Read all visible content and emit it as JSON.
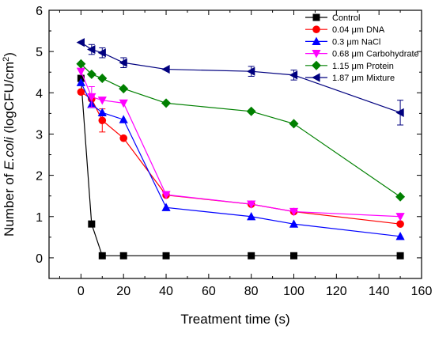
{
  "chart_data": {
    "type": "line",
    "xlabel": "Treatment time (s)",
    "ylabel_parts": [
      "Number of ",
      "E.coli",
      " (logCFU/cm",
      "2",
      ")"
    ],
    "xlim": [
      -15,
      160
    ],
    "ylim": [
      -0.5,
      6
    ],
    "x_ticks": [
      0,
      20,
      40,
      60,
      80,
      100,
      120,
      140,
      160
    ],
    "y_ticks": [
      0,
      1,
      2,
      3,
      4,
      5,
      6
    ],
    "x_tick_labels": [
      "0",
      "20",
      "40",
      "60",
      "80",
      "100",
      "120",
      "140",
      "160"
    ],
    "y_tick_labels": [
      "0",
      "1",
      "2",
      "3",
      "4",
      "5",
      "6"
    ],
    "legend_position": "top-right",
    "grid": false,
    "series": [
      {
        "name": "Control",
        "color": "#000000",
        "marker": "square",
        "points": [
          [
            0,
            4.35
          ],
          [
            5,
            0.82
          ],
          [
            10,
            0.05
          ],
          [
            20,
            0.05
          ],
          [
            40,
            0.05
          ],
          [
            80,
            0.05
          ],
          [
            100,
            0.05
          ],
          [
            150,
            0.05
          ]
        ],
        "errors": []
      },
      {
        "name": "0.04 μm DNA",
        "color": "#ff0000",
        "marker": "circle",
        "points": [
          [
            0,
            4.02
          ],
          [
            5,
            3.85
          ],
          [
            10,
            3.33
          ],
          [
            20,
            2.9
          ],
          [
            40,
            1.52
          ],
          [
            80,
            1.3
          ],
          [
            100,
            1.12
          ],
          [
            150,
            0.82
          ]
        ],
        "errors": [
          [
            10,
            0.28
          ]
        ]
      },
      {
        "name": "0.3 μm NaCl",
        "color": "#0000ff",
        "marker": "triangle-up",
        "points": [
          [
            0,
            4.25
          ],
          [
            5,
            3.72
          ],
          [
            10,
            3.52
          ],
          [
            20,
            3.35
          ],
          [
            40,
            1.22
          ],
          [
            80,
            1.0
          ],
          [
            100,
            0.82
          ],
          [
            150,
            0.52
          ]
        ],
        "errors": []
      },
      {
        "name": "0.68 μm Carbohydrate",
        "color": "#ff00ff",
        "marker": "triangle-down",
        "points": [
          [
            0,
            4.52
          ],
          [
            5,
            3.9
          ],
          [
            10,
            3.82
          ],
          [
            20,
            3.75
          ],
          [
            40,
            1.53
          ],
          [
            80,
            1.3
          ],
          [
            100,
            1.12
          ],
          [
            150,
            1.0
          ]
        ],
        "errors": [
          [
            5,
            0.25
          ]
        ]
      },
      {
        "name": "1.15 μm Protein",
        "color": "#008000",
        "marker": "diamond",
        "points": [
          [
            0,
            4.7
          ],
          [
            5,
            4.45
          ],
          [
            10,
            4.35
          ],
          [
            20,
            4.1
          ],
          [
            40,
            3.75
          ],
          [
            80,
            3.55
          ],
          [
            100,
            3.25
          ],
          [
            150,
            1.48
          ]
        ],
        "errors": []
      },
      {
        "name": "1.87 μm Mixture",
        "color": "#00007f",
        "marker": "triangle-left",
        "points": [
          [
            0,
            5.22
          ],
          [
            5,
            5.05
          ],
          [
            10,
            4.97
          ],
          [
            20,
            4.73
          ],
          [
            40,
            4.57
          ],
          [
            80,
            4.52
          ],
          [
            100,
            4.43
          ],
          [
            150,
            3.52
          ]
        ],
        "errors": [
          [
            5,
            0.12
          ],
          [
            10,
            0.12
          ],
          [
            20,
            0.12
          ],
          [
            80,
            0.12
          ],
          [
            100,
            0.12
          ],
          [
            150,
            0.3
          ]
        ]
      }
    ]
  }
}
